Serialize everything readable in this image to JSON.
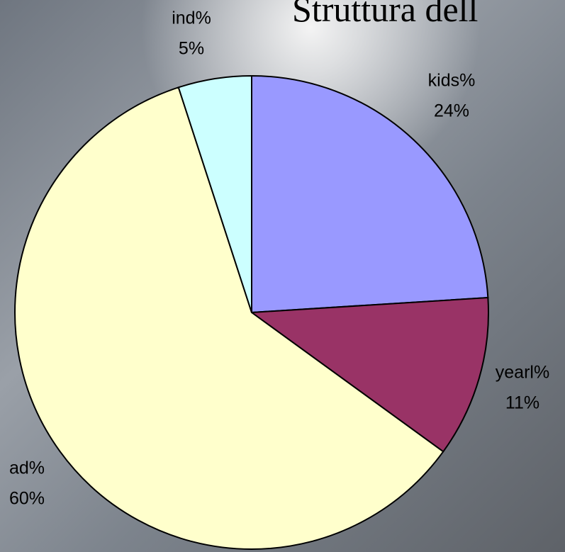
{
  "chart_data": {
    "type": "pie",
    "title": "Struttura dell",
    "categories": [
      "kids%",
      "yearl%",
      "ad%",
      "ind%"
    ],
    "values": [
      24,
      11,
      60,
      5
    ],
    "value_labels": [
      "24%",
      "11%",
      "60%",
      "5%"
    ],
    "colors": [
      "#9999ff",
      "#993366",
      "#ffffcc",
      "#ccffff"
    ]
  }
}
